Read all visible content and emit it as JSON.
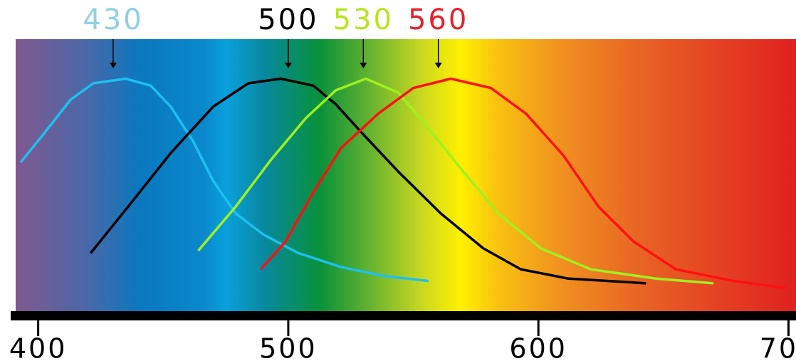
{
  "chart_data": {
    "type": "line",
    "xlim": [
      391,
      703
    ],
    "ylim": [
      0,
      1.17
    ],
    "xticks": [
      400,
      500,
      600,
      700
    ],
    "series": [
      {
        "color": "#1ec0f0",
        "x": [
          393,
          402,
          413,
          422,
          435,
          445,
          453,
          462,
          470,
          479,
          490,
          504,
          521,
          539,
          556
        ],
        "values": [
          0.64,
          0.76,
          0.91,
          0.98,
          1.0,
          0.97,
          0.88,
          0.73,
          0.56,
          0.42,
          0.33,
          0.25,
          0.19,
          0.15,
          0.13
        ]
      },
      {
        "color": "#000000",
        "x": [
          421,
          436,
          453,
          470,
          484,
          497,
          510,
          519,
          530,
          544,
          561,
          578,
          593,
          612,
          643
        ],
        "values": [
          0.25,
          0.45,
          0.68,
          0.88,
          0.98,
          1.0,
          0.97,
          0.89,
          0.76,
          0.6,
          0.42,
          0.27,
          0.18,
          0.14,
          0.12
        ]
      },
      {
        "color": "#a0f020",
        "x": [
          464,
          479,
          493,
          507,
          519,
          531,
          544,
          555,
          570,
          584,
          601,
          621,
          647,
          670
        ],
        "values": [
          0.26,
          0.45,
          0.65,
          0.83,
          0.95,
          1.0,
          0.94,
          0.8,
          0.6,
          0.42,
          0.27,
          0.18,
          0.14,
          0.12
        ]
      },
      {
        "color": "#ff1010",
        "x": [
          489,
          499,
          510,
          521,
          536,
          550,
          565,
          581,
          595,
          610,
          624,
          638,
          655,
          678,
          699
        ],
        "values": [
          0.18,
          0.3,
          0.51,
          0.7,
          0.85,
          0.96,
          1.0,
          0.96,
          0.85,
          0.67,
          0.45,
          0.3,
          0.18,
          0.13,
          0.1
        ]
      }
    ],
    "annotations": [
      {
        "text": "430",
        "x": 430,
        "color": "#8fd0e4"
      },
      {
        "text": "500",
        "x": 500,
        "color": "#000000"
      },
      {
        "text": "530",
        "x": 530,
        "color": "#b5e61d"
      },
      {
        "text": "560",
        "x": 560,
        "color": "#e8202a"
      }
    ]
  }
}
